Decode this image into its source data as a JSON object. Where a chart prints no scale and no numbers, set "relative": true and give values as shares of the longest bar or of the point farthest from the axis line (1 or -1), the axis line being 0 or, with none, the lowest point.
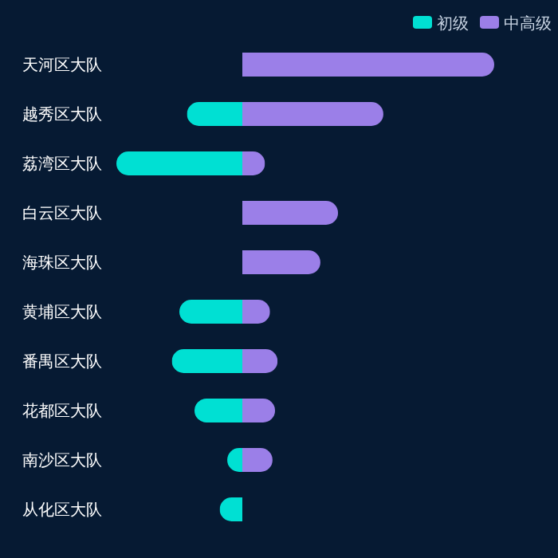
{
  "chart_data": {
    "type": "bar",
    "orientation": "horizontal",
    "stacked": true,
    "relative": true,
    "legend": "top right",
    "categories": [
      "天河区大队",
      "越秀区大队",
      "荔湾区大队",
      "白云区大队",
      "海珠区大队",
      "黄埔区大队",
      "番禺区大队",
      "花都区大队",
      "南沙区大队",
      "从化区大队"
    ],
    "series": [
      {
        "name": "初级",
        "color": "#00e0d3",
        "values": [
          0,
          -0.22,
          -0.5,
          0,
          0,
          -0.25,
          -0.28,
          -0.19,
          -0.06,
          -0.09
        ]
      },
      {
        "name": "中高级",
        "color": "#9b7fe8",
        "values": [
          1,
          0.56,
          0.09,
          0.38,
          0.31,
          0.11,
          0.14,
          0.13,
          0.12,
          0
        ]
      }
    ]
  }
}
